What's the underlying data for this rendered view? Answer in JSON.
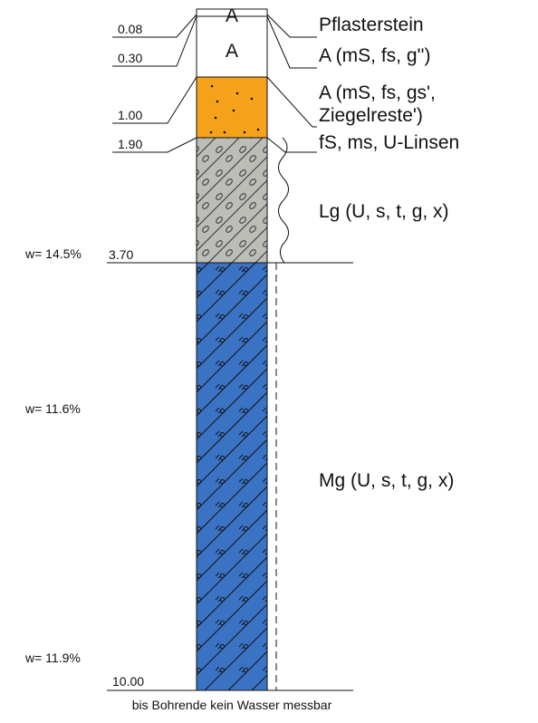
{
  "layers": [
    {
      "depth": "0.08",
      "symbol": "A",
      "description": [
        "Pflasterstein"
      ]
    },
    {
      "depth": "0.30",
      "symbol": "A",
      "description": [
        "A (mS, fs, g'')"
      ]
    },
    {
      "depth": "1.00",
      "description": [
        "A (mS, fs, gs',",
        "Ziegelreste')"
      ]
    },
    {
      "depth": "1.90",
      "description": [
        "fS, ms, U-Linsen"
      ]
    },
    {
      "depth": "3.70",
      "description": [
        "Lg (U, s, t, g, x)"
      ]
    },
    {
      "depth": "10.00",
      "description": [
        "Mg (U, s, t, g, x)"
      ]
    }
  ],
  "water_contents": [
    "w= 14.5%",
    "w= 11.6%",
    "w= 11.9%"
  ],
  "footer": "bis Bohrende kein Wasser messbar"
}
